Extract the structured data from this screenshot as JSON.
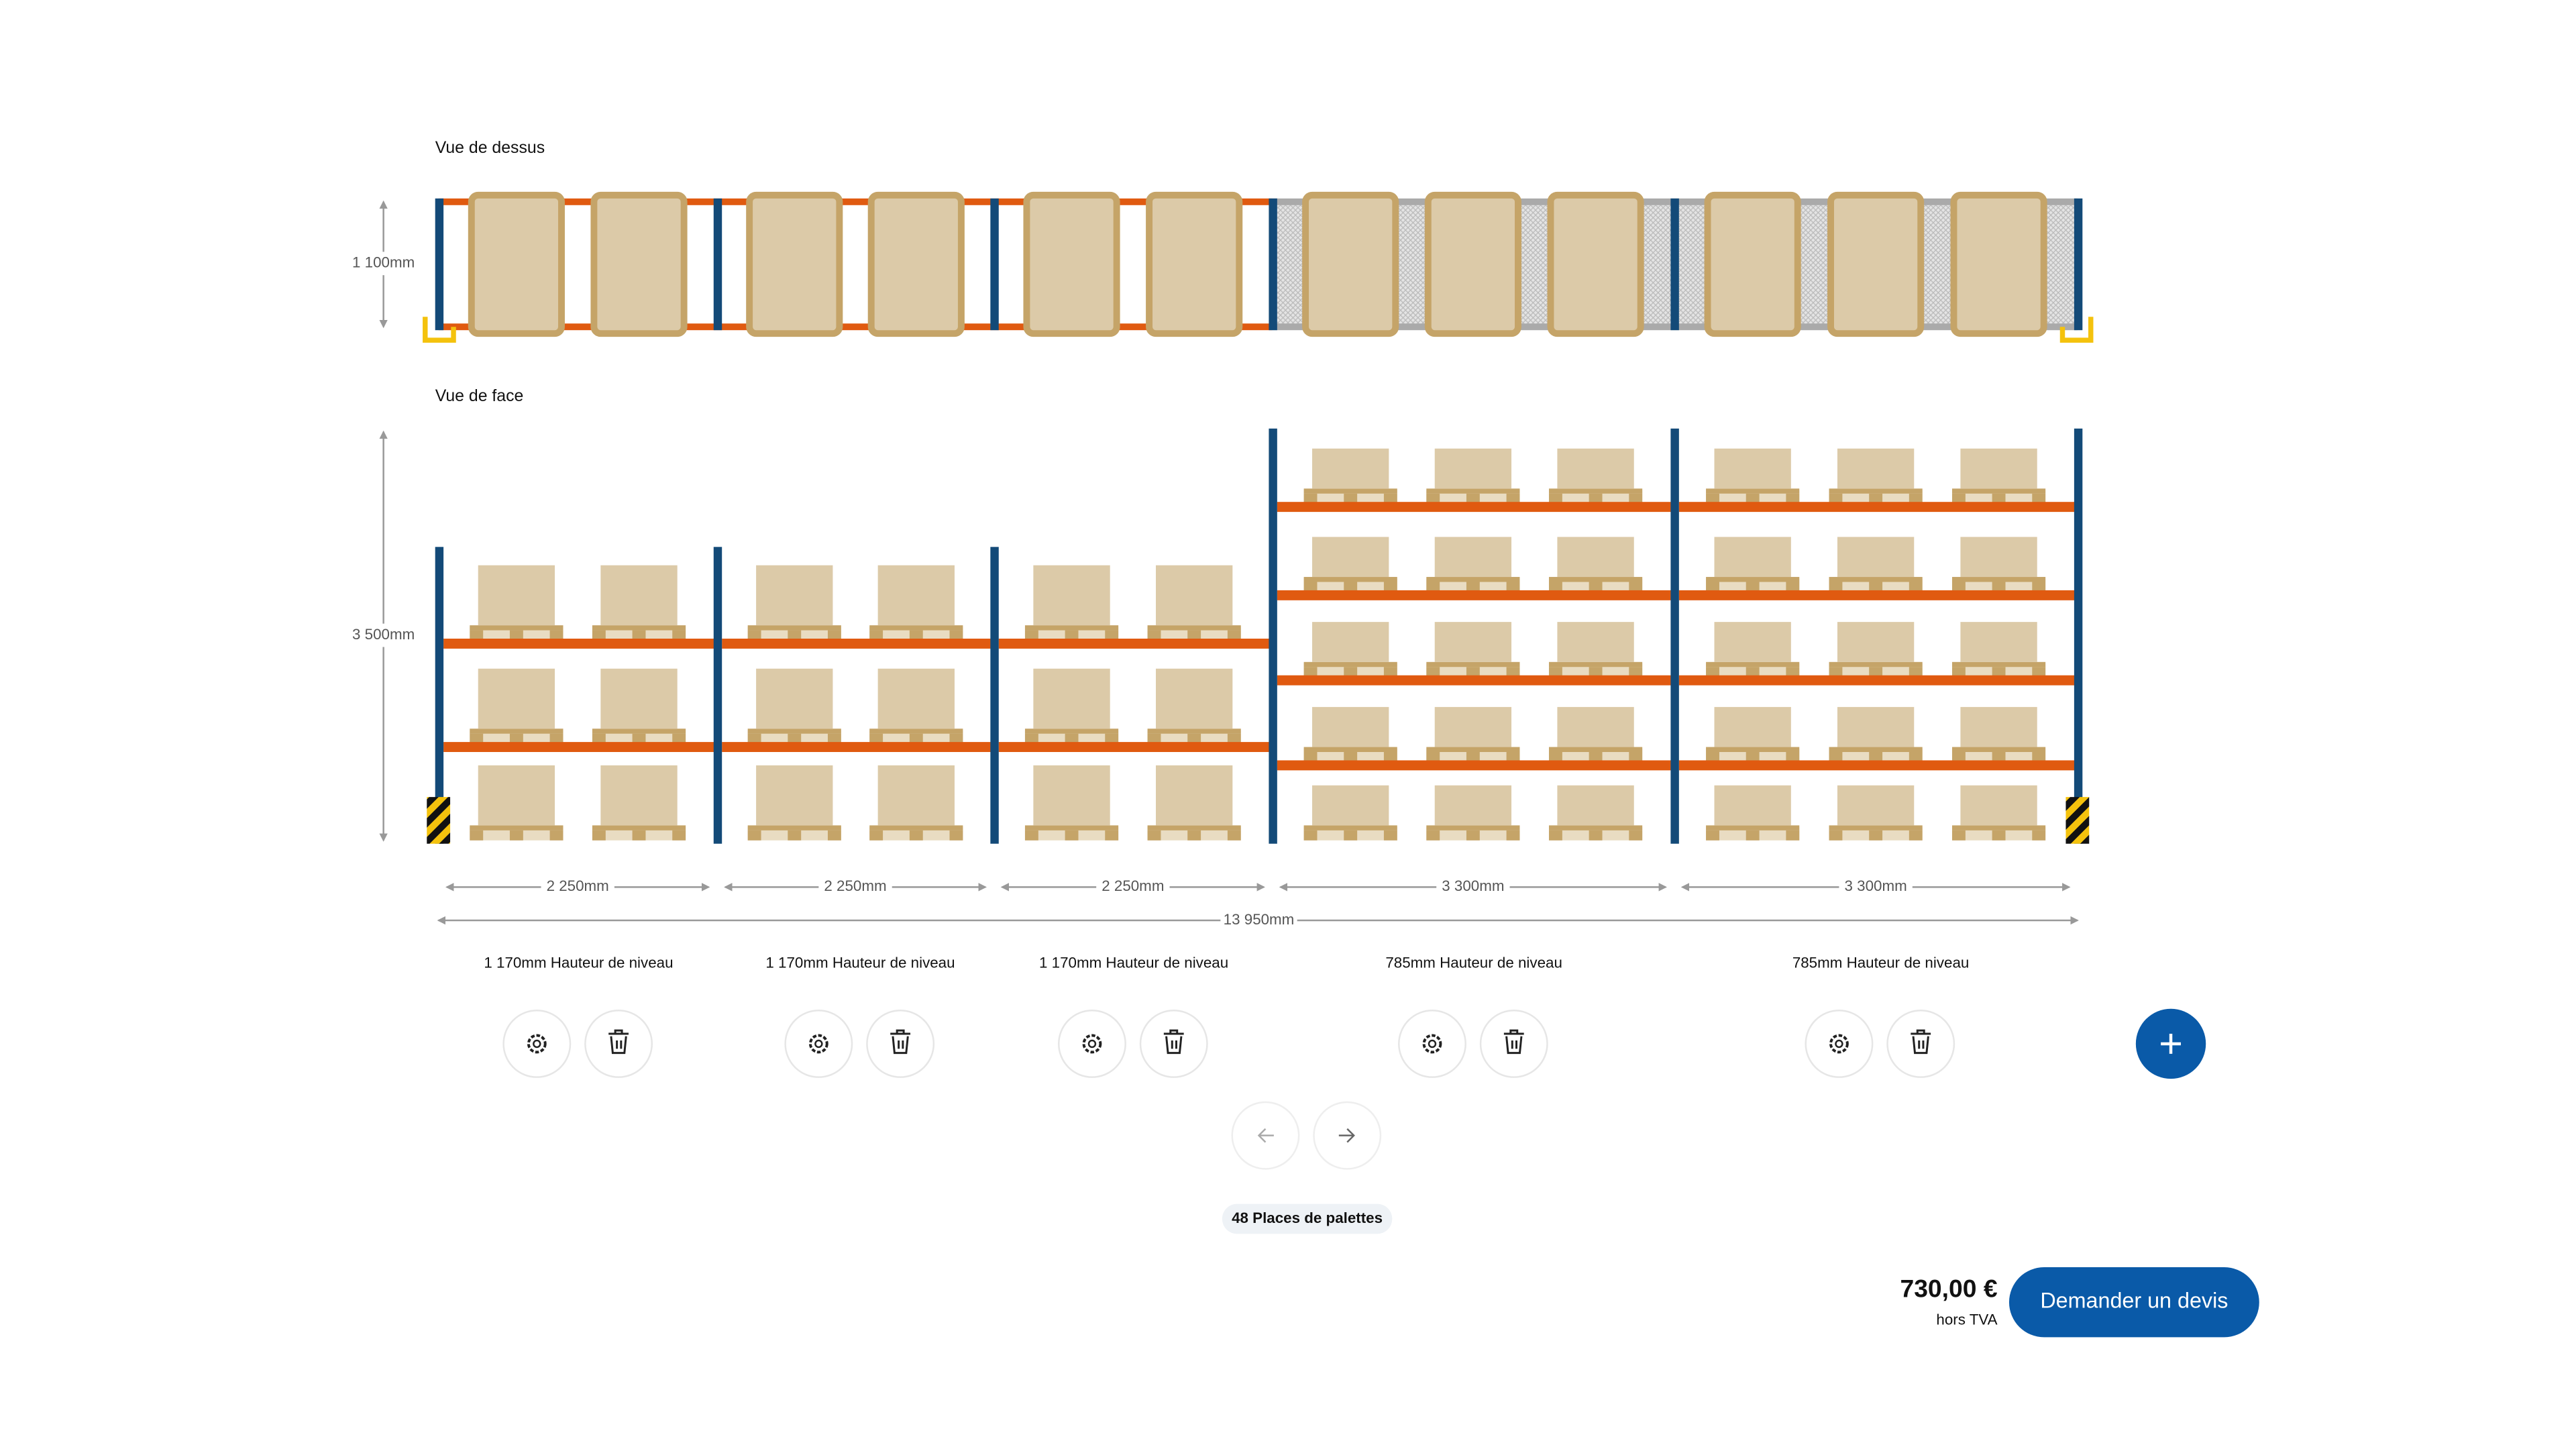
{
  "top_view": {
    "label": "Vue de dessus",
    "depth": "1 100mm"
  },
  "front_view": {
    "label": "Vue de face",
    "height": "3 500mm"
  },
  "bays": [
    {
      "width": "2 250mm",
      "level_height": "1 170mm Hauteur de niveau"
    },
    {
      "width": "2 250mm",
      "level_height": "1 170mm Hauteur de niveau"
    },
    {
      "width": "2 250mm",
      "level_height": "1 170mm Hauteur de niveau"
    },
    {
      "width": "3 300mm",
      "level_height": "785mm Hauteur de niveau"
    },
    {
      "width": "3 300mm",
      "level_height": "785mm Hauteur de niveau"
    }
  ],
  "total_width": "13 950mm",
  "pallet_places": "48 Places de palettes",
  "price": "730,00 €",
  "price_note": "hors TVA",
  "cta": "Demander un devis"
}
